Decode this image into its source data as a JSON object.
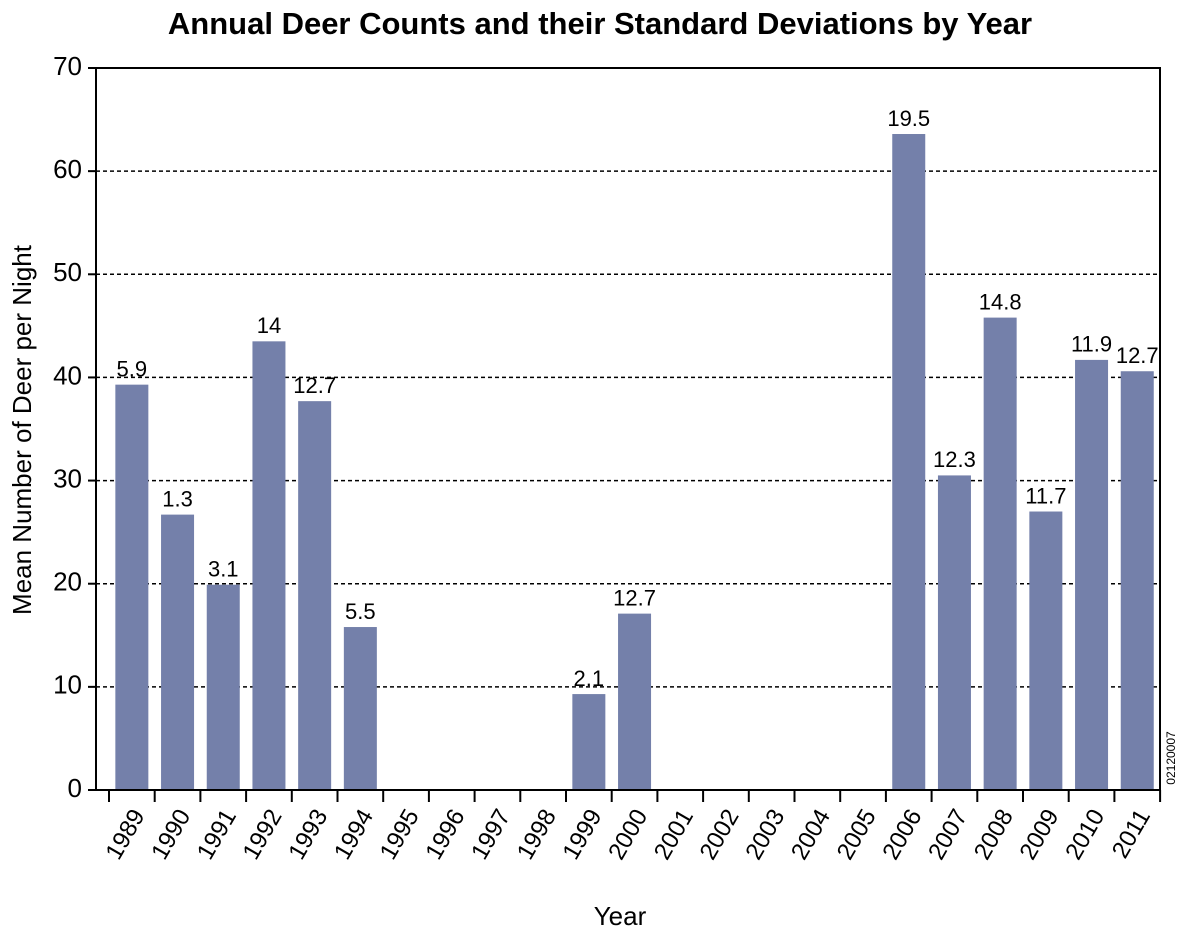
{
  "chart_data": {
    "type": "bar",
    "title": "Annual Deer Counts and their Standard Deviations by Year",
    "x_label": "Year",
    "y_label": "Mean Number of Deer per Night",
    "figure_id": "02120007",
    "categories": [
      "1989",
      "1990",
      "1991",
      "1992",
      "1993",
      "1994",
      "1995",
      "1996",
      "1997",
      "1998",
      "1999",
      "2000",
      "2001",
      "2002",
      "2003",
      "2004",
      "2005",
      "2006",
      "2007",
      "2008",
      "2009",
      "2010",
      "2011"
    ],
    "values": [
      39.3,
      26.7,
      19.9,
      43.5,
      37.7,
      15.8,
      null,
      null,
      null,
      null,
      9.3,
      17.1,
      null,
      null,
      null,
      null,
      null,
      63.6,
      30.5,
      45.8,
      27.0,
      41.7,
      40.6
    ],
    "standard_deviations": [
      5.9,
      1.3,
      3.1,
      14,
      12.7,
      5.5,
      null,
      null,
      null,
      null,
      2.1,
      12.7,
      null,
      null,
      null,
      null,
      null,
      19.5,
      12.3,
      14.8,
      11.7,
      11.9,
      12.7
    ],
    "color": "#7480aa",
    "ylim": [
      0,
      70
    ],
    "yticks": [
      0,
      10,
      20,
      30,
      40,
      50,
      60,
      70
    ],
    "grid": true
  }
}
